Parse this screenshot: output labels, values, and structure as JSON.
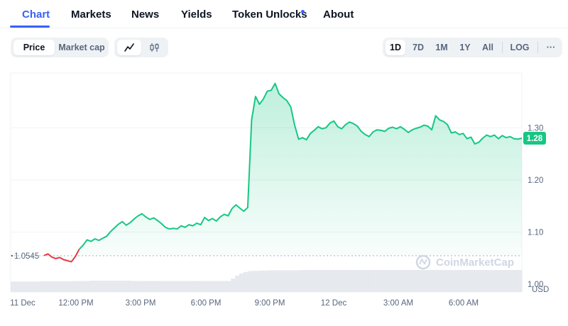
{
  "tabs": [
    {
      "label": "Chart",
      "active": true
    },
    {
      "label": "Markets"
    },
    {
      "label": "News"
    },
    {
      "label": "Yields"
    },
    {
      "label": "Token Unlocks",
      "has_dot": true
    },
    {
      "label": "About"
    }
  ],
  "toolbar": {
    "metric": [
      "Price",
      "Market cap"
    ],
    "metric_active": "Price",
    "chart_type_icons": [
      "line-chart-icon",
      "candlestick-icon"
    ],
    "ranges": [
      "1D",
      "7D",
      "1M",
      "1Y",
      "All"
    ],
    "range_active": "1D",
    "log_label": "LOG",
    "more_label": "···"
  },
  "chart_data": {
    "type": "area",
    "currency": "USD",
    "y_ticks": [
      "1.30",
      "1.20",
      "1.10",
      "1.00"
    ],
    "y_tick_values": [
      1.3,
      1.2,
      1.1,
      1.0
    ],
    "ylim": [
      0.985,
      1.405
    ],
    "x_ticks": [
      "11 Dec",
      "12:00 PM",
      "3:00 PM",
      "6:00 PM",
      "9:00 PM",
      "12 Dec",
      "3:00 AM",
      "6:00 AM"
    ],
    "open_price": 1.0545,
    "open_price_label": "1.0545",
    "current_price": 1.28,
    "current_price_label": "1.28",
    "up_color": "#16c784",
    "down_color": "#ea3943",
    "watermark": "CoinMarketCap",
    "series": [
      1.055,
      1.058,
      1.052,
      1.049,
      1.051,
      1.047,
      1.045,
      1.043,
      1.053,
      1.067,
      1.075,
      1.085,
      1.082,
      1.087,
      1.084,
      1.088,
      1.092,
      1.101,
      1.108,
      1.115,
      1.12,
      1.113,
      1.118,
      1.125,
      1.131,
      1.135,
      1.129,
      1.124,
      1.127,
      1.122,
      1.116,
      1.109,
      1.106,
      1.107,
      1.106,
      1.112,
      1.109,
      1.114,
      1.112,
      1.117,
      1.114,
      1.128,
      1.122,
      1.126,
      1.121,
      1.129,
      1.134,
      1.131,
      1.145,
      1.152,
      1.146,
      1.14,
      1.147,
      1.315,
      1.36,
      1.345,
      1.355,
      1.37,
      1.372,
      1.385,
      1.365,
      1.358,
      1.352,
      1.34,
      1.305,
      1.278,
      1.281,
      1.277,
      1.289,
      1.295,
      1.302,
      1.298,
      1.3,
      1.309,
      1.313,
      1.302,
      1.298,
      1.306,
      1.311,
      1.308,
      1.303,
      1.293,
      1.287,
      1.283,
      1.292,
      1.296,
      1.295,
      1.293,
      1.299,
      1.301,
      1.298,
      1.302,
      1.297,
      1.291,
      1.296,
      1.299,
      1.301,
      1.305,
      1.303,
      1.296,
      1.323,
      1.315,
      1.312,
      1.306,
      1.29,
      1.292,
      1.287,
      1.289,
      1.279,
      1.282,
      1.269,
      1.272,
      1.28,
      1.286,
      1.283,
      1.286,
      1.279,
      1.285,
      1.281,
      1.283,
      1.279,
      1.278,
      1.28
    ],
    "volume": [
      0.35,
      0.35,
      0.35,
      0.35,
      0.35,
      0.35,
      0.35,
      0.36,
      0.36,
      0.36,
      0.36,
      0.36,
      0.36,
      0.36,
      0.36,
      0.37,
      0.37,
      0.37,
      0.37,
      0.38,
      0.38,
      0.38,
      0.38,
      0.38,
      0.38,
      0.38,
      0.38,
      0.38,
      0.38,
      0.37,
      0.37,
      0.37,
      0.37,
      0.37,
      0.37,
      0.37,
      0.37,
      0.37,
      0.37,
      0.37,
      0.37,
      0.37,
      0.37,
      0.37,
      0.37,
      0.37,
      0.37,
      0.37,
      0.37,
      0.37,
      0.37,
      0.37,
      0.37,
      0.45,
      0.55,
      0.62,
      0.67,
      0.7,
      0.71,
      0.71,
      0.72,
      0.72,
      0.73,
      0.73,
      0.73,
      0.73,
      0.73,
      0.73,
      0.73,
      0.73,
      0.74,
      0.74,
      0.74,
      0.74,
      0.74,
      0.74,
      0.74,
      0.74,
      0.74,
      0.74,
      0.74,
      0.74,
      0.74,
      0.74,
      0.74,
      0.74,
      0.74,
      0.74,
      0.74,
      0.74,
      0.74,
      0.74,
      0.74,
      0.74,
      0.74,
      0.74,
      0.74,
      0.74,
      0.74,
      0.74,
      0.74,
      0.74,
      0.74,
      0.74,
      0.74,
      0.74,
      0.74,
      0.74,
      0.74,
      0.74,
      0.74,
      0.74,
      0.74,
      0.74,
      0.74,
      0.74,
      0.74,
      0.74,
      0.74,
      0.74,
      0.74,
      0.74,
      0.74
    ]
  }
}
